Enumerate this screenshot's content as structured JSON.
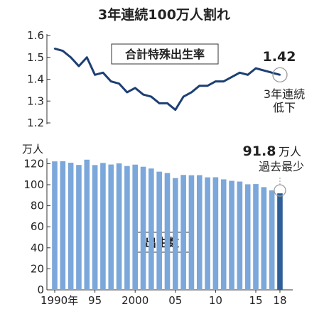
{
  "title": "3年連続100万人割れ",
  "chart_data": [
    {
      "type": "line",
      "name": "合計特殊出生率",
      "ylim": [
        1.2,
        1.6
      ],
      "yticks": [
        "1.6",
        "1.5",
        "1.4",
        "1.3",
        "1.2"
      ],
      "x": [
        1990,
        1991,
        1992,
        1993,
        1994,
        1995,
        1996,
        1997,
        1998,
        1999,
        2000,
        2001,
        2002,
        2003,
        2004,
        2005,
        2006,
        2007,
        2008,
        2009,
        2010,
        2011,
        2012,
        2013,
        2014,
        2015,
        2016,
        2017,
        2018
      ],
      "values": [
        1.54,
        1.53,
        1.5,
        1.46,
        1.5,
        1.42,
        1.43,
        1.39,
        1.38,
        1.34,
        1.36,
        1.33,
        1.32,
        1.29,
        1.29,
        1.26,
        1.32,
        1.34,
        1.37,
        1.37,
        1.39,
        1.39,
        1.41,
        1.43,
        1.42,
        1.45,
        1.44,
        1.43,
        1.42
      ],
      "annotation_value": "1.42",
      "annotation_text": [
        "3年連続",
        "低下"
      ],
      "line_color": "#1d3f73"
    },
    {
      "type": "bar",
      "name": "出生数",
      "unit": "万人",
      "ylim": [
        0,
        125
      ],
      "yticks": [
        "120",
        "100",
        "80",
        "60",
        "40",
        "20",
        "0"
      ],
      "x": [
        1990,
        1991,
        1992,
        1993,
        1994,
        1995,
        1996,
        1997,
        1998,
        1999,
        2000,
        2001,
        2002,
        2003,
        2004,
        2005,
        2006,
        2007,
        2008,
        2009,
        2010,
        2011,
        2012,
        2013,
        2014,
        2015,
        2016,
        2017,
        2018
      ],
      "values": [
        122.2,
        122.3,
        120.9,
        118.8,
        123.8,
        118.7,
        120.7,
        119.2,
        120.3,
        117.8,
        119.1,
        117.1,
        115.4,
        112.4,
        111.1,
        106.3,
        109.3,
        109.0,
        109.1,
        107.0,
        107.1,
        105.1,
        103.7,
        103.0,
        100.4,
        100.6,
        97.7,
        94.6,
        91.8
      ],
      "xticks": [
        "1990年",
        "95",
        "2000",
        "05",
        "10",
        "15",
        "18"
      ],
      "annotation_value": "91.8",
      "annotation_unit": "万人",
      "annotation_text": "過去最少",
      "bar_color": "#7ba7da",
      "last_bar_color": "#2e5f99"
    }
  ]
}
